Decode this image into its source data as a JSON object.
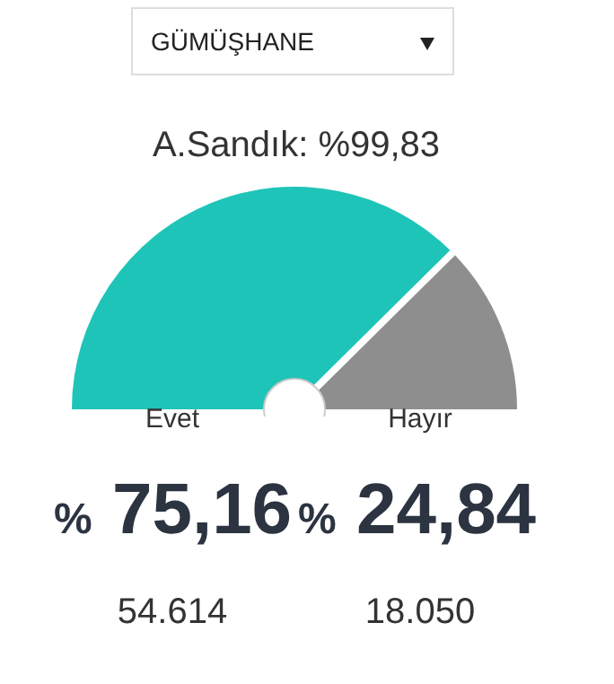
{
  "chart_data": {
    "type": "pie",
    "title": "GÜMÜŞHANE",
    "subtitle": "A.Sandık: %99,83",
    "categories": [
      "Evet",
      "Hayır"
    ],
    "values": [
      75.16,
      24.84
    ],
    "colors": [
      "#1fc4b8",
      "#8e8e8e"
    ],
    "needle": "Evet",
    "value_labels": [
      "% 75,16",
      "% 24,84"
    ],
    "annotations": [
      "54.614",
      "18.050"
    ],
    "legend": false
  }
}
